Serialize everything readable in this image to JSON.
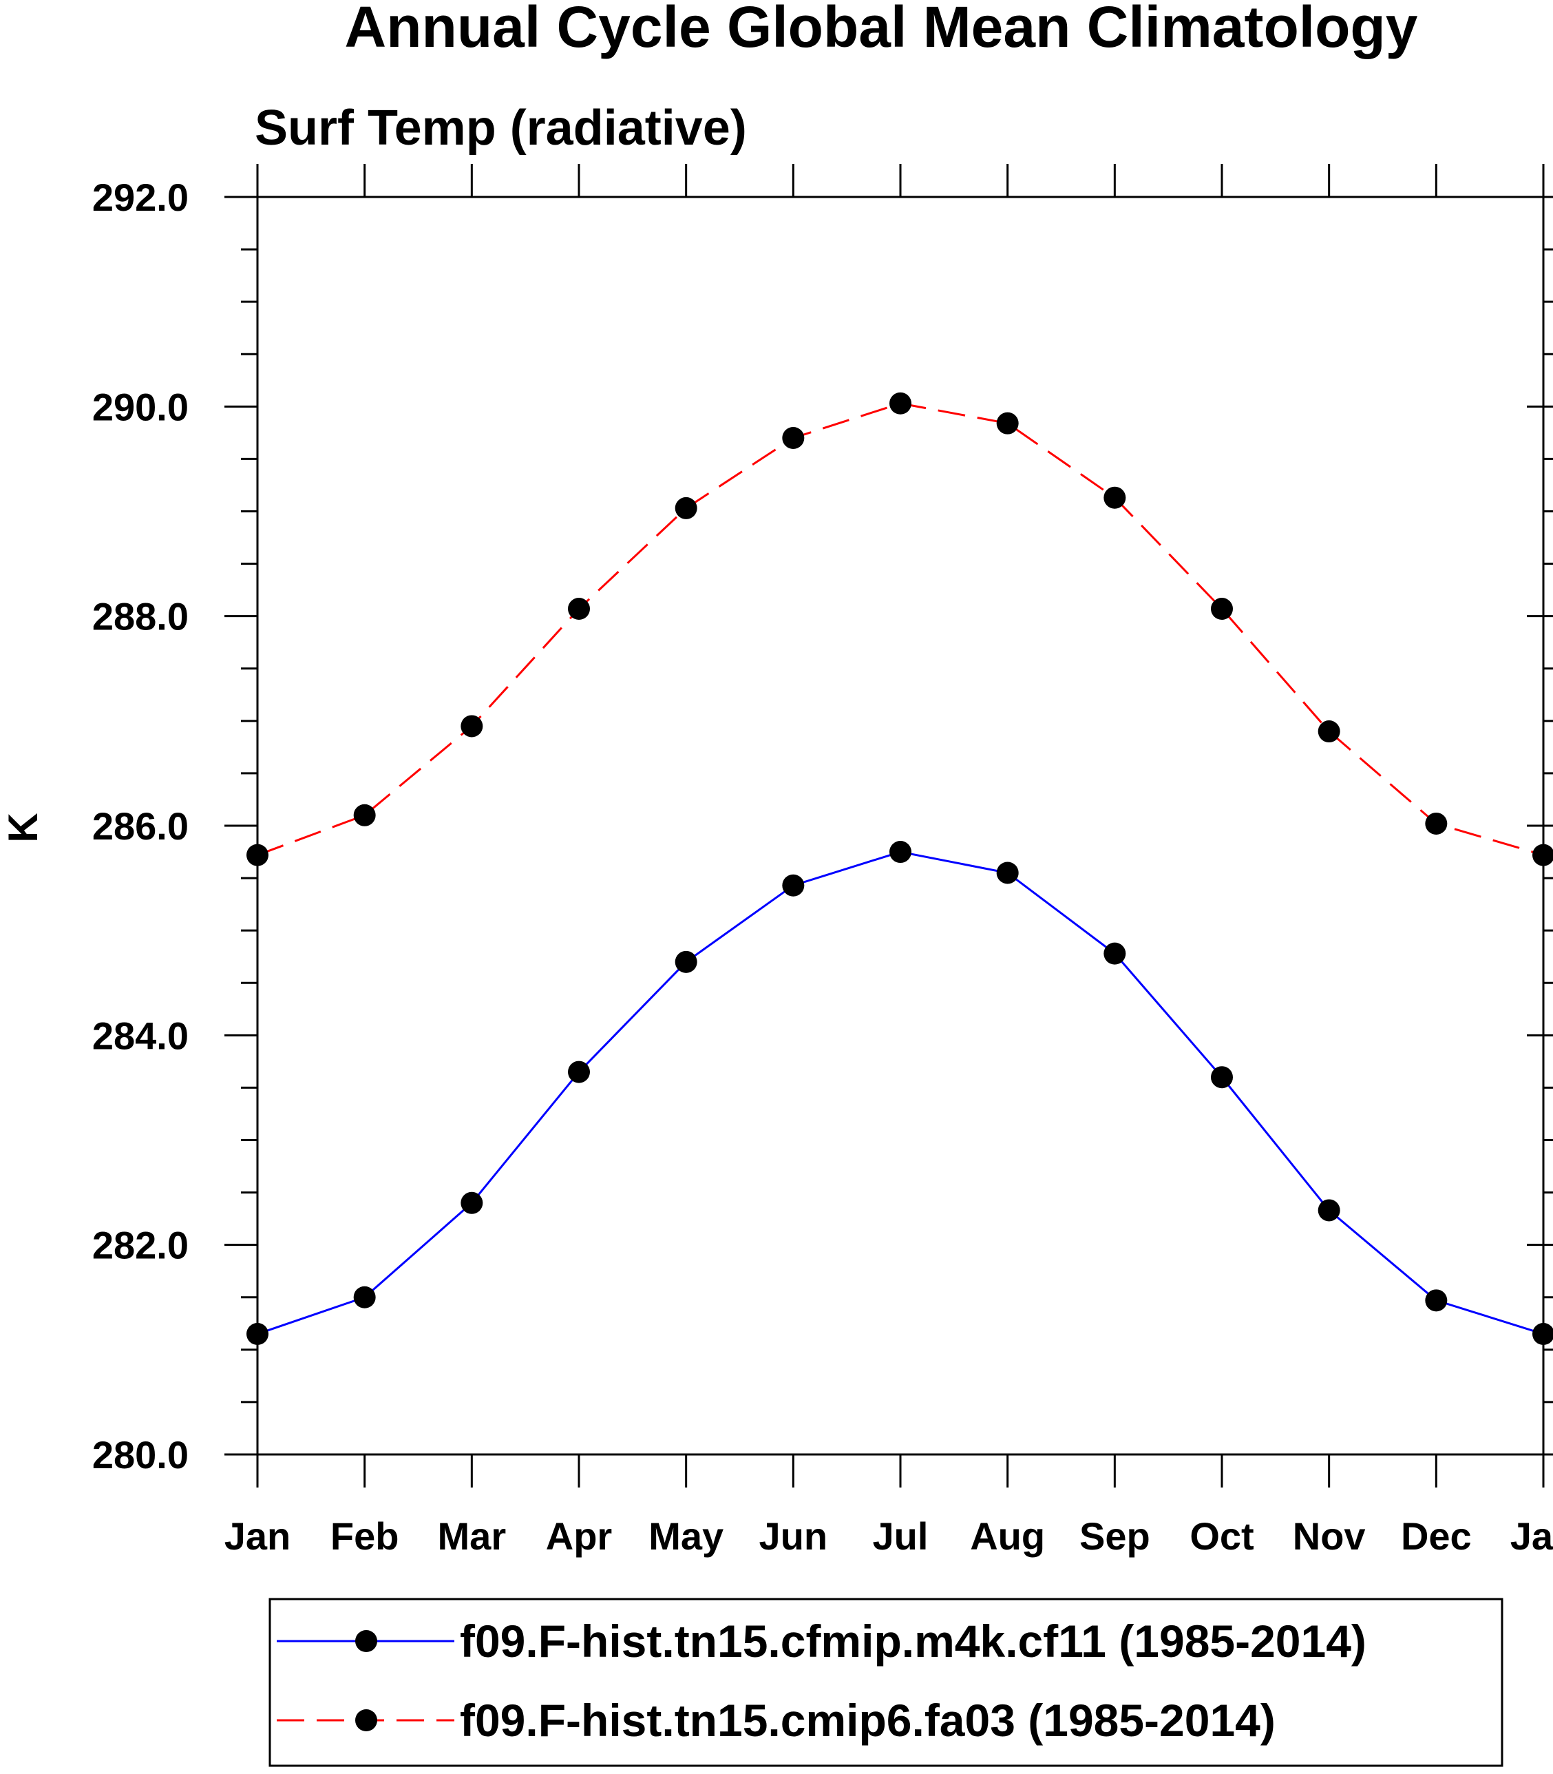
{
  "chart_data": {
    "type": "line",
    "title": "Annual Cycle Global Mean Climatology",
    "subtitle": "Surf Temp (radiative)",
    "xlabel": "",
    "ylabel": "K",
    "categories": [
      "Jan",
      "Feb",
      "Mar",
      "Apr",
      "May",
      "Jun",
      "Jul",
      "Aug",
      "Sep",
      "Oct",
      "Nov",
      "Dec",
      "Jan"
    ],
    "ylim": [
      280.0,
      292.0
    ],
    "yticks": [
      280.0,
      282.0,
      284.0,
      286.0,
      288.0,
      290.0,
      292.0
    ],
    "ytick_labels": [
      "280.0",
      "282.0",
      "284.0",
      "286.0",
      "288.0",
      "290.0",
      "292.0"
    ],
    "grid": false,
    "legend_position": "bottom",
    "series": [
      {
        "name": "f09.F-hist.tn15.cfmip.m4k.cf11 (1985-2014)",
        "color": "#0000ff",
        "dash": "solid",
        "values": [
          281.15,
          281.5,
          282.4,
          283.65,
          284.7,
          285.43,
          285.75,
          285.55,
          284.78,
          283.6,
          282.33,
          281.47,
          281.15
        ]
      },
      {
        "name": "f09.F-hist.tn15.cmip6.fa03 (1985-2014)",
        "color": "#ff0000",
        "dash": "dashed",
        "values": [
          285.72,
          286.1,
          286.95,
          288.07,
          289.03,
          289.7,
          290.03,
          289.84,
          289.13,
          288.07,
          286.9,
          286.02,
          285.72
        ]
      }
    ]
  }
}
